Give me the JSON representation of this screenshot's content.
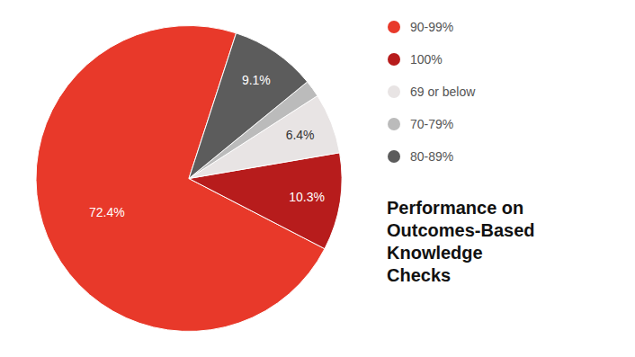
{
  "chart_data": {
    "type": "pie",
    "title": "Performance on\nOutcomes-Based\nKnowledge\nChecks",
    "categories": [
      "90-99%",
      "100%",
      "69 or below",
      "70-79%",
      "80-89%"
    ],
    "values": [
      72.4,
      10.3,
      6.4,
      1.8,
      9.1
    ],
    "value_labels": [
      "72.4%",
      "10.3%",
      "6.4%",
      null,
      "9.1%"
    ],
    "colors": [
      "#E8392A",
      "#B71C1C",
      "#E8E4E4",
      "#BBBBBB",
      "#5C5C5C"
    ],
    "data_labels": true,
    "legend": "upper right"
  }
}
